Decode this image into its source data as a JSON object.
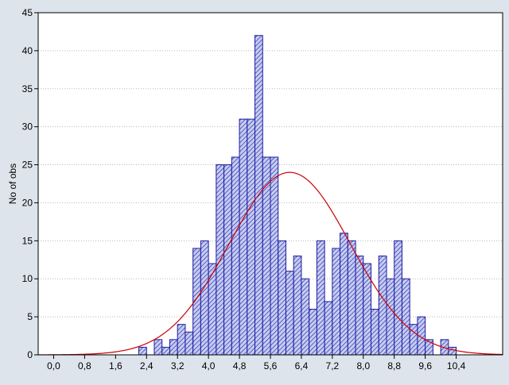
{
  "chart_data": {
    "type": "bar",
    "subtype": "histogram-with-normal-fit",
    "title": "",
    "xlabel": "",
    "ylabel": "No of obs",
    "xlim": [
      -0.4,
      11.6
    ],
    "ylim": [
      0,
      45
    ],
    "grid": "horizontal dotted",
    "bin_width": 0.2,
    "x_ticks": [
      "0,0",
      "0,8",
      "1,6",
      "2,4",
      "3,2",
      "4,0",
      "4,8",
      "5,6",
      "6,4",
      "7,2",
      "8,0",
      "8,8",
      "9,6",
      "10,4"
    ],
    "x_tick_values": [
      0,
      0.8,
      1.6,
      2.4,
      3.2,
      4.0,
      4.8,
      5.6,
      6.4,
      7.2,
      8.0,
      8.8,
      9.6,
      10.4
    ],
    "y_ticks": [
      "0",
      "5",
      "10",
      "15",
      "20",
      "25",
      "30",
      "35",
      "40",
      "45"
    ],
    "y_tick_values": [
      0,
      5,
      10,
      15,
      20,
      25,
      30,
      35,
      40,
      45
    ],
    "bins": [
      {
        "x": 2.3,
        "count": 1
      },
      {
        "x": 2.7,
        "count": 2
      },
      {
        "x": 2.9,
        "count": 1
      },
      {
        "x": 3.1,
        "count": 2
      },
      {
        "x": 3.3,
        "count": 4
      },
      {
        "x": 3.5,
        "count": 3
      },
      {
        "x": 3.7,
        "count": 14
      },
      {
        "x": 3.9,
        "count": 15
      },
      {
        "x": 4.1,
        "count": 12
      },
      {
        "x": 4.3,
        "count": 25
      },
      {
        "x": 4.5,
        "count": 25
      },
      {
        "x": 4.7,
        "count": 26
      },
      {
        "x": 4.9,
        "count": 31
      },
      {
        "x": 5.1,
        "count": 31
      },
      {
        "x": 5.3,
        "count": 42
      },
      {
        "x": 5.5,
        "count": 26
      },
      {
        "x": 5.7,
        "count": 26
      },
      {
        "x": 5.9,
        "count": 15
      },
      {
        "x": 6.1,
        "count": 11
      },
      {
        "x": 6.3,
        "count": 13
      },
      {
        "x": 6.5,
        "count": 10
      },
      {
        "x": 6.7,
        "count": 6
      },
      {
        "x": 6.9,
        "count": 15
      },
      {
        "x": 7.1,
        "count": 7
      },
      {
        "x": 7.3,
        "count": 14
      },
      {
        "x": 7.5,
        "count": 16
      },
      {
        "x": 7.7,
        "count": 15
      },
      {
        "x": 7.9,
        "count": 13
      },
      {
        "x": 8.1,
        "count": 12
      },
      {
        "x": 8.3,
        "count": 6
      },
      {
        "x": 8.5,
        "count": 13
      },
      {
        "x": 8.7,
        "count": 10
      },
      {
        "x": 8.9,
        "count": 15
      },
      {
        "x": 9.1,
        "count": 10
      },
      {
        "x": 9.3,
        "count": 4
      },
      {
        "x": 9.5,
        "count": 5
      },
      {
        "x": 9.7,
        "count": 2
      },
      {
        "x": 10.1,
        "count": 2
      },
      {
        "x": 10.3,
        "count": 1
      }
    ],
    "normal_fit": {
      "mean": 6.1,
      "sd": 1.57,
      "peak": 24
    },
    "colors": {
      "background": "#dde4ec",
      "plot_area": "#ffffff",
      "bar_fill": "#c6cdf0",
      "bar_hatch": "#2b2bb0",
      "bar_edge": "#1a1aa0",
      "curve": "#cc0000",
      "grid": "#b8b8b8"
    }
  }
}
